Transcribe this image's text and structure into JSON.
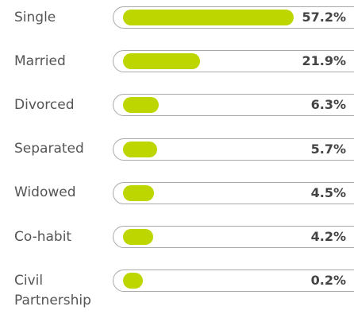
{
  "chart_data": {
    "type": "bar",
    "orientation": "horizontal",
    "categories": [
      "Single",
      "Married",
      "Divorced",
      "Separated",
      "Widowed",
      "Co-habit",
      "Civil Partnership"
    ],
    "values": [
      57.2,
      21.9,
      6.3,
      5.7,
      4.5,
      4.2,
      0.2
    ],
    "value_labels": [
      "57.2%",
      "21.9%",
      "6.3%",
      "5.7%",
      "4.5%",
      "4.2%",
      "0.2%"
    ],
    "color": "#bdd600"
  }
}
